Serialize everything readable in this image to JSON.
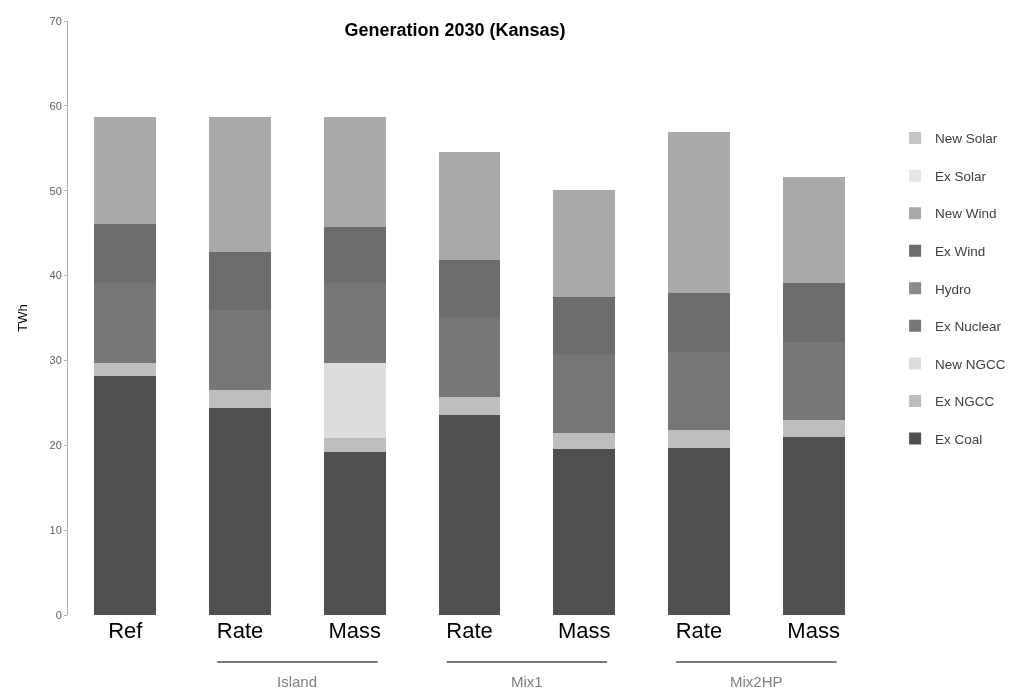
{
  "chart_data": {
    "type": "bar",
    "title": "Generation 2030 (Kansas)",
    "ylabel": "TWh",
    "categories": [
      "Ref",
      "Rate",
      "Mass",
      "Rate",
      "Mass",
      "Rate",
      "Mass"
    ],
    "annotations": [
      "Island",
      "Mix1",
      "Mix2HP"
    ],
    "stacked": true,
    "legend": "right",
    "grid": false,
    "ylim": [
      0,
      70
    ],
    "yticks": [
      0,
      10,
      20,
      30,
      40,
      50,
      60,
      70
    ],
    "series": [
      {
        "name": "Ex Coal",
        "color": "#505050",
        "values": [
          28.2,
          24.4,
          19.2,
          23.6,
          19.6,
          19.7,
          21.0
        ]
      },
      {
        "name": "Ex NGCC",
        "color": "#bdbdbd",
        "values": [
          1.5,
          2.1,
          1.7,
          2.1,
          1.8,
          2.1,
          2.0
        ]
      },
      {
        "name": "New NGCC",
        "color": "#dcdcdc",
        "values": [
          0,
          0,
          8.8,
          0,
          0,
          0,
          0
        ]
      },
      {
        "name": "Ex Nuclear",
        "color": "#767676",
        "values": [
          9.4,
          9.4,
          9.4,
          9.4,
          9.2,
          9.2,
          9.2
        ]
      },
      {
        "name": "Hydro",
        "color": "#8a8a8a",
        "values": [
          0,
          0,
          0,
          0,
          0,
          0,
          0
        ]
      },
      {
        "name": "Ex Wind",
        "color": "#6c6c6c",
        "values": [
          7.0,
          6.9,
          6.6,
          6.7,
          6.9,
          6.9,
          6.9
        ]
      },
      {
        "name": "New Wind",
        "color": "#a9a9a9",
        "values": [
          12.6,
          15.9,
          13.0,
          12.8,
          12.6,
          19.0,
          12.5
        ]
      },
      {
        "name": "Ex Solar",
        "color": "#e6e6e6",
        "values": [
          0,
          0,
          0,
          0,
          0,
          0,
          0
        ]
      },
      {
        "name": "New Solar",
        "color": "#c4c4c4",
        "values": [
          0,
          0,
          0,
          0,
          0,
          0,
          0
        ]
      }
    ]
  }
}
